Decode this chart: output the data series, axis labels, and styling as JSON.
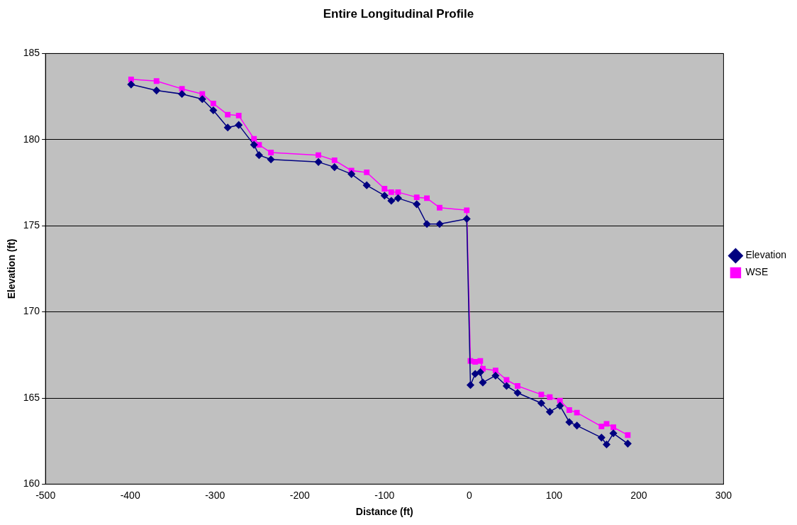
{
  "chart_data": {
    "type": "line",
    "title": "Entire Longitudinal Profile",
    "xlabel": "Distance (ft)",
    "ylabel": "Elevation (ft)",
    "xlim": [
      -500,
      300
    ],
    "xticks": [
      -500,
      -400,
      -300,
      -200,
      -100,
      0,
      100,
      200,
      300
    ],
    "ylim": [
      160,
      185
    ],
    "yticks": [
      160,
      165,
      170,
      175,
      180,
      185
    ],
    "grid": "y",
    "legend": "right",
    "line_style": "solid",
    "series": [
      {
        "name": "Elevation",
        "color": "#000080",
        "marker": "diamond",
        "x": [
          -399,
          -369,
          -339,
          -315,
          -302,
          -285,
          -272,
          -254,
          -248,
          -234,
          -178,
          -159,
          -139,
          -121,
          -100,
          -92,
          -84,
          -62,
          -50,
          -35,
          -3,
          1.4,
          7,
          13,
          16,
          31,
          44,
          57,
          85,
          95,
          107,
          118,
          127,
          156,
          162,
          170,
          187
        ],
        "values": [
          183.2,
          182.85,
          182.65,
          182.35,
          181.7,
          180.7,
          180.85,
          179.7,
          179.1,
          178.85,
          178.7,
          178.4,
          178.0,
          177.35,
          176.75,
          176.45,
          176.6,
          176.25,
          175.1,
          175.1,
          175.4,
          165.75,
          166.4,
          166.5,
          165.9,
          166.3,
          165.7,
          165.3,
          164.7,
          164.2,
          164.55,
          163.6,
          163.4,
          162.7,
          162.3,
          162.95,
          162.35
        ]
      },
      {
        "name": "WSE",
        "color": "#ff00ff",
        "marker": "square",
        "x": [
          -399,
          -369,
          -339,
          -315,
          -302,
          -285,
          -272,
          -254,
          -248,
          -234,
          -178,
          -159,
          -139,
          -121,
          -100,
          -92,
          -84,
          -62,
          -50,
          -35,
          -3,
          1.4,
          7,
          13,
          16,
          31,
          44,
          57,
          85,
          95,
          107,
          118,
          127,
          156,
          162,
          170,
          187
        ],
        "values": [
          183.5,
          183.4,
          182.95,
          182.65,
          182.1,
          181.45,
          181.4,
          180.05,
          179.7,
          179.25,
          179.1,
          178.8,
          178.2,
          178.1,
          177.15,
          176.95,
          176.95,
          176.65,
          176.6,
          176.05,
          175.9,
          167.15,
          167.1,
          167.15,
          166.7,
          166.6,
          166.05,
          165.7,
          165.2,
          165.05,
          164.85,
          164.3,
          164.15,
          163.35,
          163.5,
          163.3,
          162.85
        ]
      }
    ]
  }
}
